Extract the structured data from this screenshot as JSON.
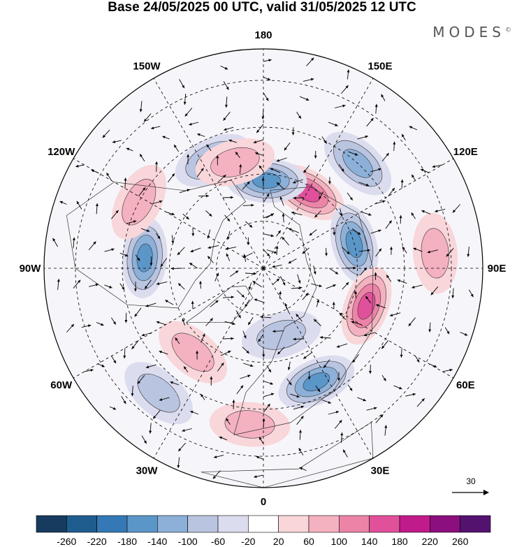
{
  "title": "Base 24/05/2025 00 UTC, valid 31/05/2025 12 UTC",
  "brand": "MODES",
  "brand_mark": "©",
  "longitude_labels": [
    {
      "text": "180",
      "lon": 180
    },
    {
      "text": "150E",
      "lon": 150
    },
    {
      "text": "120E",
      "lon": 120
    },
    {
      "text": "90E",
      "lon": 90
    },
    {
      "text": "60E",
      "lon": 60
    },
    {
      "text": "30E",
      "lon": 30
    },
    {
      "text": "0",
      "lon": 0
    },
    {
      "text": "30W",
      "lon": -30
    },
    {
      "text": "60W",
      "lon": -60
    },
    {
      "text": "90W",
      "lon": -90
    },
    {
      "text": "120W",
      "lon": -120
    },
    {
      "text": "150W",
      "lon": -150
    }
  ],
  "reference_vector": {
    "label": "30",
    "value": 30
  },
  "colorbar": {
    "ticks": [
      "-260",
      "-220",
      "-180",
      "-140",
      "-100",
      "-60",
      "-20",
      "20",
      "60",
      "100",
      "140",
      "180",
      "220",
      "260"
    ],
    "colors": [
      "#163b5e",
      "#1f5d8f",
      "#3479b5",
      "#5b96c8",
      "#8cb0d8",
      "#b9c4e0",
      "#dcdcef",
      "#ffffff",
      "#f8d6d9",
      "#f4b1bf",
      "#ec84a8",
      "#e1509a",
      "#c11a8a",
      "#8b0f7e",
      "#54126f"
    ]
  },
  "anomaly_features": [
    {
      "kind": "positive",
      "level": 140,
      "lon": 150,
      "lat": 62
    },
    {
      "kind": "negative",
      "level": -140,
      "lon": 178,
      "lat": 62
    },
    {
      "kind": "negative",
      "level": -100,
      "lon": -155,
      "lat": 52
    },
    {
      "kind": "negative",
      "level": -100,
      "lon": 138,
      "lat": 45
    },
    {
      "kind": "negative",
      "level": -140,
      "lon": 105,
      "lat": 60
    },
    {
      "kind": "positive",
      "level": 140,
      "lon": 70,
      "lat": 55
    },
    {
      "kind": "negative",
      "level": -140,
      "lon": -95,
      "lat": 52
    },
    {
      "kind": "positive",
      "level": 60,
      "lon": -118,
      "lat": 45
    },
    {
      "kind": "negative",
      "level": -140,
      "lon": 25,
      "lat": 50
    },
    {
      "kind": "negative",
      "level": -60,
      "lon": 15,
      "lat": 68
    },
    {
      "kind": "positive",
      "level": 60,
      "lon": -40,
      "lat": 55
    },
    {
      "kind": "positive",
      "level": 60,
      "lon": -5,
      "lat": 40
    },
    {
      "kind": "negative",
      "level": -60,
      "lon": -40,
      "lat": 38
    },
    {
      "kind": "positive",
      "level": 60,
      "lon": -165,
      "lat": 55
    },
    {
      "kind": "positive",
      "level": 60,
      "lon": 95,
      "lat": 35
    }
  ]
}
